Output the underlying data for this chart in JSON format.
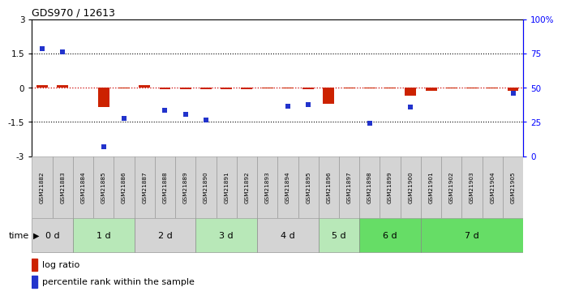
{
  "title": "GDS970 / 12613",
  "samples": [
    "GSM21882",
    "GSM21883",
    "GSM21884",
    "GSM21885",
    "GSM21886",
    "GSM21887",
    "GSM21888",
    "GSM21889",
    "GSM21890",
    "GSM21891",
    "GSM21892",
    "GSM21893",
    "GSM21894",
    "GSM21895",
    "GSM21896",
    "GSM21897",
    "GSM21898",
    "GSM21899",
    "GSM21900",
    "GSM21901",
    "GSM21902",
    "GSM21903",
    "GSM21904",
    "GSM21905"
  ],
  "log_ratio": [
    0.1,
    0.12,
    0.01,
    -0.85,
    -0.04,
    0.12,
    -0.07,
    -0.05,
    -0.06,
    -0.05,
    -0.05,
    -0.04,
    -0.04,
    -0.05,
    -0.7,
    -0.04,
    -0.04,
    -0.04,
    -0.35,
    -0.12,
    -0.04,
    -0.03,
    -0.03,
    -0.14
  ],
  "pct_rank": [
    1.7,
    1.55,
    null,
    -2.6,
    -1.35,
    null,
    -1.0,
    -1.15,
    -1.4,
    null,
    null,
    null,
    -0.8,
    -0.75,
    null,
    null,
    -1.55,
    null,
    -0.85,
    null,
    null,
    null,
    null,
    -0.25
  ],
  "time_groups": [
    {
      "label": "0 d",
      "start": 0,
      "end": 2,
      "color": "#d4d4d4"
    },
    {
      "label": "1 d",
      "start": 2,
      "end": 5,
      "color": "#b8e8b8"
    },
    {
      "label": "2 d",
      "start": 5,
      "end": 8,
      "color": "#d4d4d4"
    },
    {
      "label": "3 d",
      "start": 8,
      "end": 11,
      "color": "#b8e8b8"
    },
    {
      "label": "4 d",
      "start": 11,
      "end": 14,
      "color": "#d4d4d4"
    },
    {
      "label": "5 d",
      "start": 14,
      "end": 16,
      "color": "#b8e8b8"
    },
    {
      "label": "6 d",
      "start": 16,
      "end": 19,
      "color": "#66dd66"
    },
    {
      "label": "7 d",
      "start": 19,
      "end": 24,
      "color": "#66dd66"
    }
  ],
  "ylim": [
    -3,
    3
  ],
  "yticks_left": [
    -3,
    -1.5,
    0,
    1.5,
    3
  ],
  "yticks_right": [
    0,
    25,
    50,
    75,
    100
  ],
  "bar_color": "#cc2200",
  "marker_color": "#2233cc",
  "sample_bg": "#d4d4d4",
  "legend_log": "log ratio",
  "legend_pct": "percentile rank within the sample"
}
